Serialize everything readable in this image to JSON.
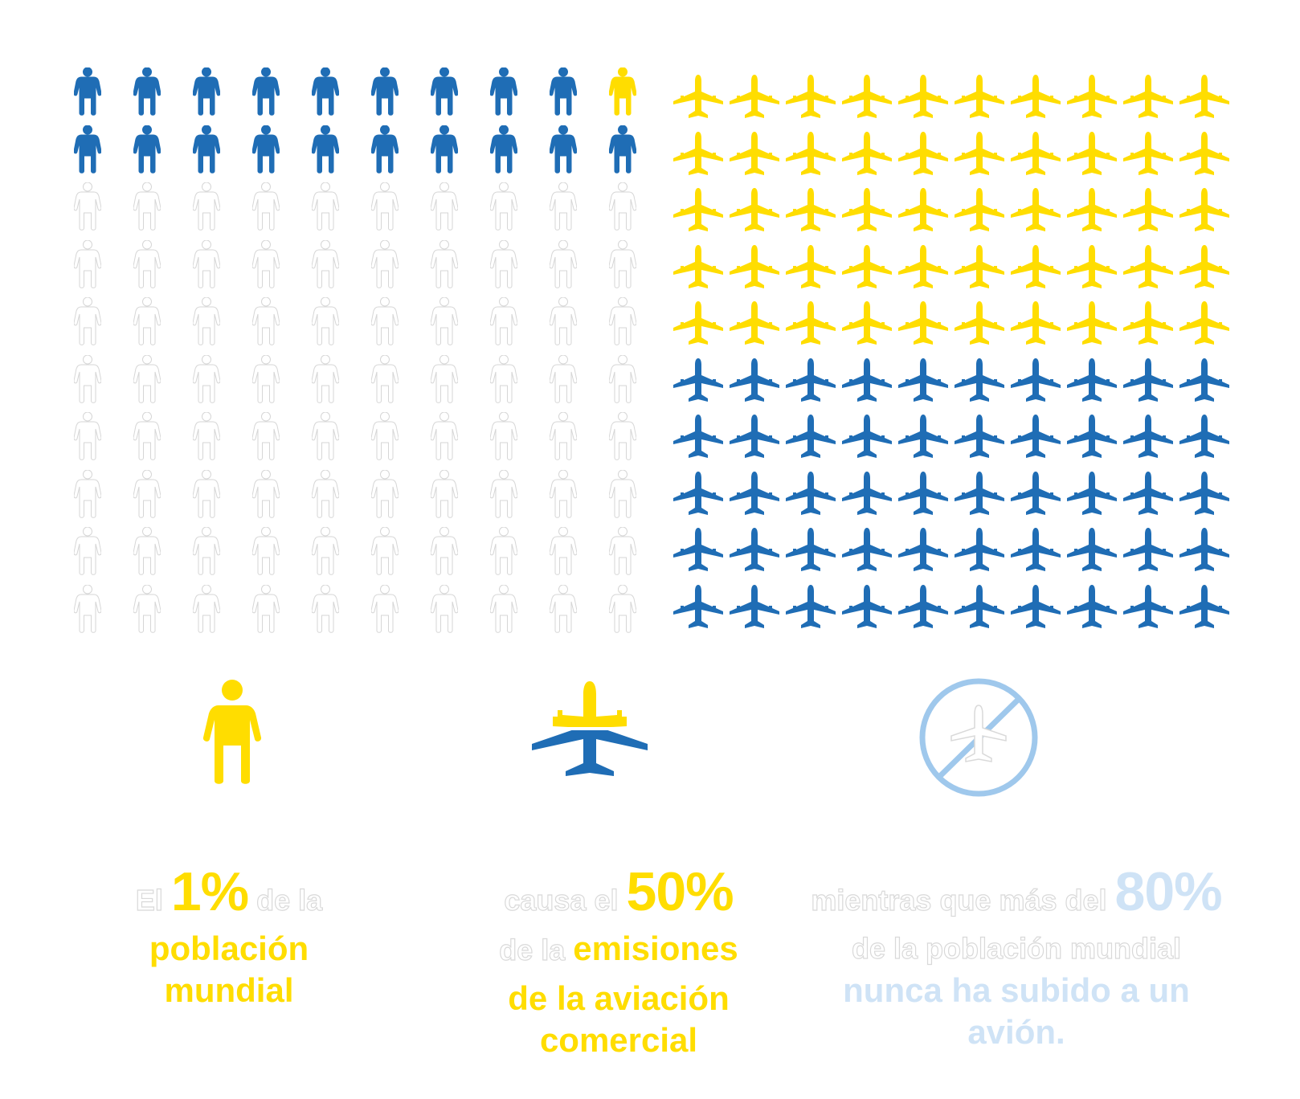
{
  "colors": {
    "blue": "#1f6db5",
    "yellow": "#ffdd00",
    "outline": "#d6d6d6",
    "pale_blue": "#9fc8ec",
    "pale_text": "#cfe3f6"
  },
  "people_grid": {
    "rows": 10,
    "columns": 10,
    "highlighted_blue": 19,
    "highlighted_yellow": 1,
    "outlined": 80
  },
  "plane_grid": {
    "rows": 10,
    "columns": 10,
    "yellow": 50,
    "blue": 50
  },
  "icons": {
    "person": "person-icon",
    "plane": "airplane-icon",
    "no_flight": "no-flight-icon"
  },
  "captions": {
    "c1": {
      "prefix": "El ",
      "value": "1%",
      "suffix": " de la",
      "line2": "población",
      "line3": "mundial"
    },
    "c2": {
      "prefix": "causa el ",
      "value": "50%",
      "line2_light": "de la ",
      "line2_bold": "emisiones",
      "line3": "de la aviación",
      "line4": "comercial"
    },
    "c3": {
      "prefix": "mientras que más del ",
      "value": "80%",
      "line2": "de la población mundial",
      "line3": "nunca ha subido a un",
      "line4": "avión."
    }
  }
}
